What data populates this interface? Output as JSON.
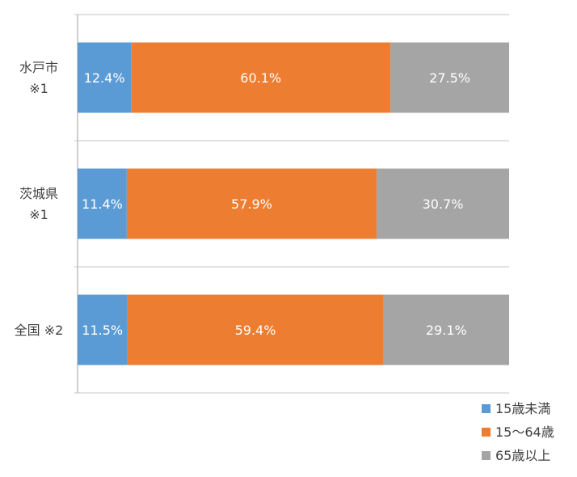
{
  "chart_data": {
    "type": "bar",
    "orientation": "horizontal",
    "stacked": "100%",
    "categories": [
      [
        "水戸市",
        "※1"
      ],
      [
        "茨城県",
        "※1"
      ],
      [
        "全国 ※2"
      ]
    ],
    "series": [
      {
        "name": "15歳未満",
        "color": "#5b9bd5",
        "values": [
          12.4,
          11.4,
          11.5
        ],
        "labels": [
          "12.4%",
          "11.4%",
          "11.5%"
        ]
      },
      {
        "name": "15～64歳",
        "color": "#ed7d31",
        "values": [
          60.1,
          57.9,
          59.4
        ],
        "labels": [
          "60.1%",
          "57.9%",
          "59.4%"
        ]
      },
      {
        "name": "65歳以上",
        "color": "#a5a5a5",
        "values": [
          27.5,
          30.7,
          29.1
        ],
        "labels": [
          "27.5%",
          "30.7%",
          "29.1%"
        ]
      }
    ],
    "xlim": [
      0,
      100
    ],
    "grid": true,
    "legend": "bottom-right",
    "title": "",
    "xlabel": "",
    "ylabel": ""
  }
}
